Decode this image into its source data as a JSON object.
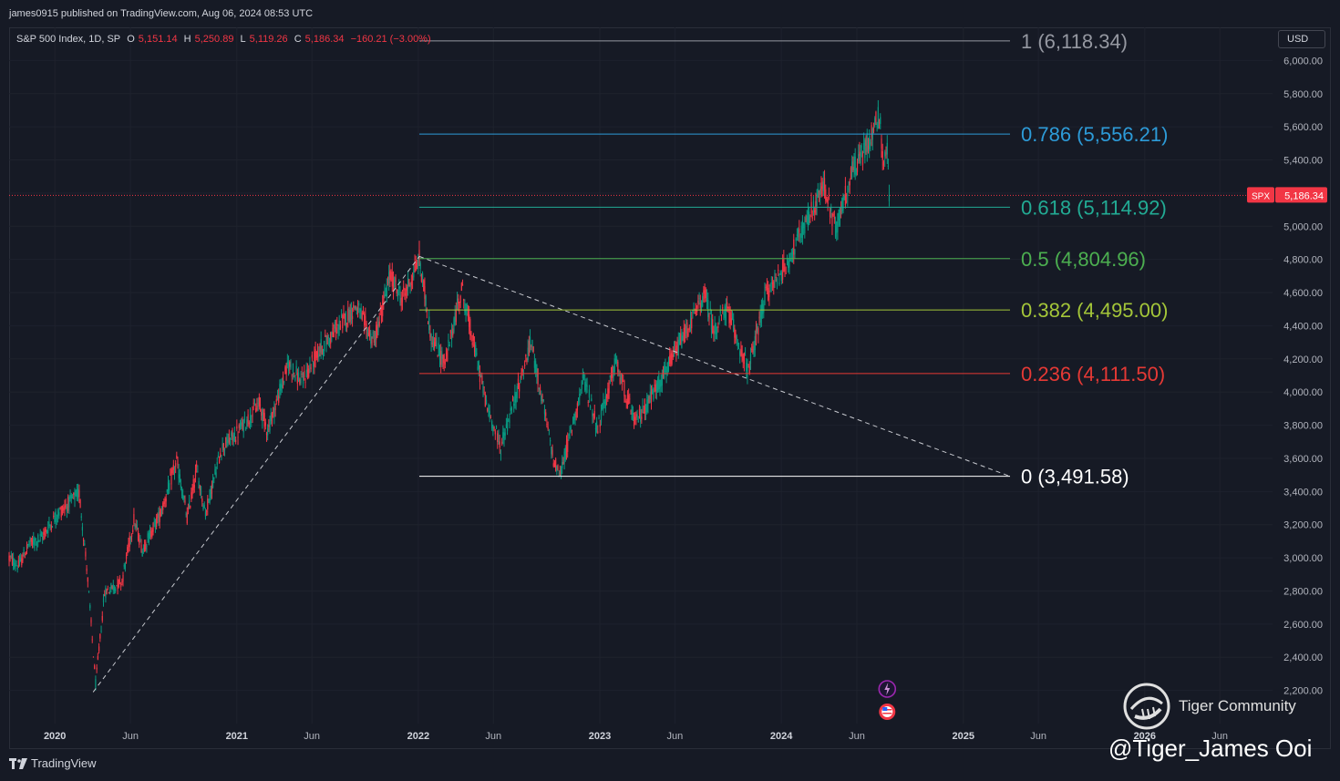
{
  "header": {
    "published": "james0915 published on TradingView.com, Aug 06, 2024 08:53 UTC"
  },
  "legend": {
    "symbol": "S&P 500 Index, 1D, SP",
    "o_label": "O",
    "o_value": "5,151.14",
    "h_label": "H",
    "h_value": "5,250.89",
    "l_label": "L",
    "l_value": "5,119.26",
    "c_label": "C",
    "c_value": "5,186.34",
    "change": "−160.21 (−3.00%)"
  },
  "currency": "USD",
  "price_tag": {
    "symbol": "SPX",
    "value": "5,186.34"
  },
  "footer": {
    "brand": "TradingView"
  },
  "watermark": {
    "community": "Tiger Community",
    "signature": "@Tiger_James Ooi"
  },
  "colors": {
    "background": "#161a25",
    "up": "#089981",
    "down": "#f23645",
    "grid": "#1f2330"
  },
  "icons": [
    "tradingview-logo-icon",
    "tiger-logo-icon",
    "lightning-icon",
    "us-flag-icon"
  ],
  "chart_data": {
    "type": "candlestick",
    "ylim": [
      2000,
      6200
    ],
    "y_ticks": [
      2200,
      2400,
      2600,
      2800,
      3000,
      3200,
      3400,
      3600,
      3800,
      4000,
      4200,
      4400,
      4600,
      4800,
      5000,
      5200,
      5400,
      5600,
      5800,
      6000
    ],
    "y_tick_labels": [
      "2,200.00",
      "2,400.00",
      "2,600.00",
      "2,800.00",
      "3,000.00",
      "3,200.00",
      "3,400.00",
      "3,600.00",
      "3,800.00",
      "4,000.00",
      "4,200.00",
      "4,400.00",
      "4,600.00",
      "4,800.00",
      "5,000.00",
      "5,200.00",
      "5,400.00",
      "5,600.00",
      "5,800.00",
      "6,000.00"
    ],
    "x_ticks": [
      {
        "date": "2020-01-01",
        "label": "2020"
      },
      {
        "date": "2020-06-01",
        "label": "Jun"
      },
      {
        "date": "2021-01-01",
        "label": "2021"
      },
      {
        "date": "2021-06-01",
        "label": "Jun"
      },
      {
        "date": "2022-01-01",
        "label": "2022"
      },
      {
        "date": "2022-06-01",
        "label": "Jun"
      },
      {
        "date": "2023-01-01",
        "label": "2023"
      },
      {
        "date": "2023-06-01",
        "label": "Jun"
      },
      {
        "date": "2024-01-01",
        "label": "2024"
      },
      {
        "date": "2024-06-01",
        "label": "Jun"
      },
      {
        "date": "2025-01-01",
        "label": "2025"
      },
      {
        "date": "2025-06-01",
        "label": "Jun"
      },
      {
        "date": "2026-01-01",
        "label": "2026"
      },
      {
        "date": "2026-06-01",
        "label": "Jun"
      }
    ],
    "xlim": [
      "2019-10-01",
      "2026-09-15"
    ],
    "last_close": 5186.34,
    "series": [
      {
        "date": "2019-10-01",
        "close": 3000
      },
      {
        "date": "2019-10-20",
        "close": 2950
      },
      {
        "date": "2019-11-10",
        "close": 3080
      },
      {
        "date": "2019-12-05",
        "close": 3120
      },
      {
        "date": "2020-01-05",
        "close": 3260
      },
      {
        "date": "2020-02-19",
        "close": 3390
      },
      {
        "date": "2020-03-05",
        "close": 2950
      },
      {
        "date": "2020-03-23",
        "close": 2240
      },
      {
        "date": "2020-04-10",
        "close": 2790
      },
      {
        "date": "2020-05-15",
        "close": 2860
      },
      {
        "date": "2020-06-08",
        "close": 3230
      },
      {
        "date": "2020-06-25",
        "close": 3050
      },
      {
        "date": "2020-08-01",
        "close": 3270
      },
      {
        "date": "2020-09-02",
        "close": 3580
      },
      {
        "date": "2020-09-23",
        "close": 3240
      },
      {
        "date": "2020-10-12",
        "close": 3530
      },
      {
        "date": "2020-10-30",
        "close": 3270
      },
      {
        "date": "2020-12-01",
        "close": 3660
      },
      {
        "date": "2021-01-01",
        "close": 3750
      },
      {
        "date": "2021-02-15",
        "close": 3930
      },
      {
        "date": "2021-03-04",
        "close": 3770
      },
      {
        "date": "2021-04-15",
        "close": 4170
      },
      {
        "date": "2021-05-12",
        "close": 4060
      },
      {
        "date": "2021-06-15",
        "close": 4250
      },
      {
        "date": "2021-07-15",
        "close": 4360
      },
      {
        "date": "2021-08-28",
        "close": 4520
      },
      {
        "date": "2021-10-04",
        "close": 4300
      },
      {
        "date": "2021-11-05",
        "close": 4700
      },
      {
        "date": "2021-11-30",
        "close": 4560
      },
      {
        "date": "2022-01-03",
        "close": 4800
      },
      {
        "date": "2022-01-27",
        "close": 4330
      },
      {
        "date": "2022-02-24",
        "close": 4170
      },
      {
        "date": "2022-03-29",
        "close": 4630
      },
      {
        "date": "2022-05-20",
        "close": 3900
      },
      {
        "date": "2022-06-16",
        "close": 3670
      },
      {
        "date": "2022-08-16",
        "close": 4300
      },
      {
        "date": "2022-09-30",
        "close": 3590
      },
      {
        "date": "2022-10-13",
        "close": 3500
      },
      {
        "date": "2022-11-30",
        "close": 4080
      },
      {
        "date": "2022-12-28",
        "close": 3780
      },
      {
        "date": "2023-02-02",
        "close": 4180
      },
      {
        "date": "2023-03-13",
        "close": 3810
      },
      {
        "date": "2023-05-15",
        "close": 4130
      },
      {
        "date": "2023-07-31",
        "close": 4590
      },
      {
        "date": "2023-08-18",
        "close": 4370
      },
      {
        "date": "2023-09-14",
        "close": 4500
      },
      {
        "date": "2023-10-27",
        "close": 4120
      },
      {
        "date": "2023-12-01",
        "close": 4590
      },
      {
        "date": "2024-01-15",
        "close": 4790
      },
      {
        "date": "2024-03-28",
        "close": 5250
      },
      {
        "date": "2024-04-19",
        "close": 4970
      },
      {
        "date": "2024-05-20",
        "close": 5310
      },
      {
        "date": "2024-06-15",
        "close": 5450
      },
      {
        "date": "2024-07-16",
        "close": 5670
      },
      {
        "date": "2024-07-25",
        "close": 5400
      },
      {
        "date": "2024-08-01",
        "close": 5450
      },
      {
        "date": "2024-08-05",
        "close": 5186.34
      }
    ],
    "fib_levels": [
      {
        "ratio": "1",
        "price": "6,118.34",
        "color": "#9598a1"
      },
      {
        "ratio": "0.786",
        "price": "5,556.21",
        "color": "#2d9bd8"
      },
      {
        "ratio": "0.618",
        "price": "5,114.92",
        "color": "#22ab94"
      },
      {
        "ratio": "0.5",
        "price": "4,804.96",
        "color": "#4caf50"
      },
      {
        "ratio": "0.382",
        "price": "4,495.00",
        "color": "#a4c639"
      },
      {
        "ratio": "0.236",
        "price": "4,111.50",
        "color": "#e53935"
      },
      {
        "ratio": "0",
        "price": "3,491.58",
        "color": "#ffffff"
      }
    ],
    "fib_start_date": "2022-01-03",
    "fib_end_date": "2025-04-05",
    "trendlines": [
      {
        "from": {
          "date": "2020-03-18",
          "price": 2190
        },
        "to": {
          "date": "2022-01-03",
          "price": 4818
        }
      },
      {
        "from": {
          "date": "2022-01-03",
          "price": 4818
        },
        "to": {
          "date": "2025-04-05",
          "price": 3491.58
        }
      }
    ]
  }
}
